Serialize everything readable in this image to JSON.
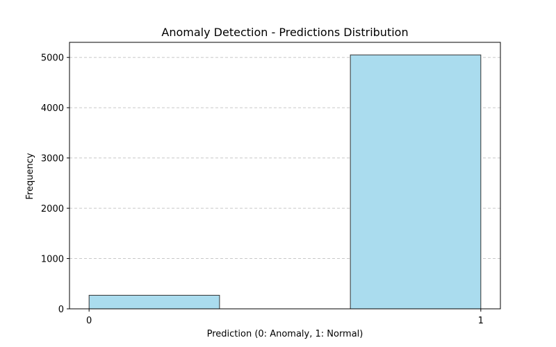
{
  "chart_data": {
    "type": "bar",
    "title": "Anomaly Detection - Predictions Distribution",
    "xlabel": "Prediction (0: Anomaly, 1: Normal)",
    "ylabel": "Frequency",
    "xlim": [
      -0.05,
      1.05
    ],
    "ylim": [
      0,
      5300
    ],
    "x_ticks": [
      0,
      1
    ],
    "x_tick_labels": [
      "0",
      "1"
    ],
    "y_ticks": [
      0,
      1000,
      2000,
      3000,
      4000,
      5000
    ],
    "y_tick_labels": [
      "0",
      "1000",
      "2000",
      "3000",
      "4000",
      "5000"
    ],
    "grid": {
      "axis": "y",
      "style": "dashed",
      "color": "#c8c8c8"
    },
    "bins": [
      {
        "x_start": 0.0,
        "x_end": 0.333,
        "value": 270
      },
      {
        "x_start": 0.333,
        "x_end": 0.667,
        "value": 0
      },
      {
        "x_start": 0.667,
        "x_end": 1.0,
        "value": 5050
      }
    ],
    "bar_color": "#aadcee",
    "bar_edge_color": "#333333"
  }
}
